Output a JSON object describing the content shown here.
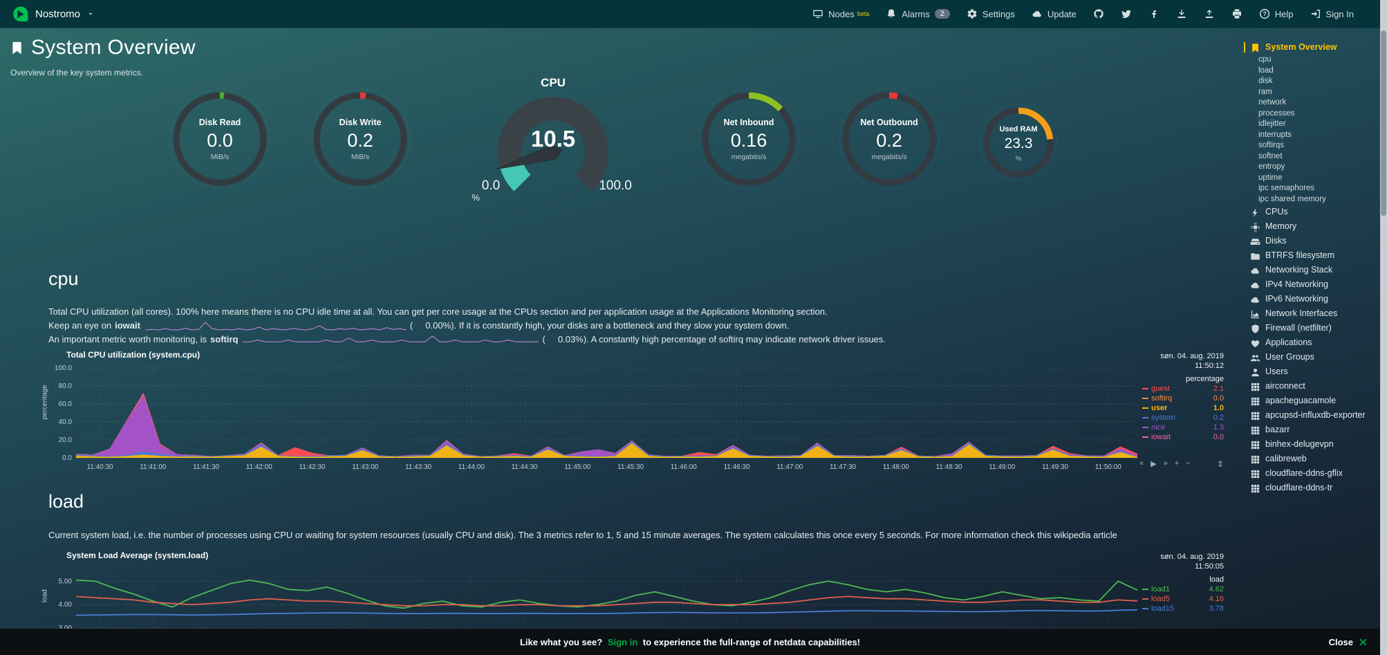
{
  "colors": {
    "accent": "#00ab44",
    "active_menu": "#ffc300"
  },
  "navbar": {
    "brand": "Nostromo",
    "items": [
      {
        "id": "nodes",
        "label": "Nodes",
        "sup": "beta",
        "icon": "monitor"
      },
      {
        "id": "alarms",
        "label": "Alarms",
        "badge": "2",
        "icon": "bell"
      },
      {
        "id": "settings",
        "label": "Settings",
        "icon": "gear"
      },
      {
        "id": "update",
        "label": "Update",
        "icon": "cloud"
      },
      {
        "id": "github",
        "icon": "github"
      },
      {
        "id": "twitter",
        "icon": "twitter"
      },
      {
        "id": "facebook",
        "icon": "facebook"
      },
      {
        "id": "import",
        "icon": "download"
      },
      {
        "id": "export",
        "icon": "upload"
      },
      {
        "id": "print",
        "icon": "printer"
      },
      {
        "id": "help",
        "label": "Help",
        "icon": "question"
      },
      {
        "id": "signin",
        "label": "Sign In",
        "icon": "signin"
      }
    ]
  },
  "header": {
    "title": "System Overview",
    "subtitle": "Overview of the key system metrics."
  },
  "gauges": [
    {
      "type": "easypie",
      "title": "Disk Read",
      "value": "0.0",
      "unit": "MiB/s",
      "percent": 1.5,
      "color": "#4caf2c"
    },
    {
      "type": "easypie",
      "title": "Disk Write",
      "value": "0.2",
      "unit": "MiB/s",
      "percent": 2,
      "color": "#e33935"
    },
    {
      "type": "gauge",
      "title": "CPU",
      "value": "10.5",
      "unit": "%",
      "min": "0.0",
      "max": "100.0",
      "percent": 10.5,
      "color": "#46c6b4"
    },
    {
      "type": "easypie",
      "title": "Net Inbound",
      "value": "0.16",
      "unit": "megabits/s",
      "percent": 13,
      "color": "#8fc021"
    },
    {
      "type": "easypie",
      "title": "Net Outbound",
      "value": "0.2",
      "unit": "megabits/s",
      "percent": 3,
      "color": "#e33935"
    },
    {
      "type": "easypie",
      "title": "Used RAM",
      "value": "23.3",
      "unit": "%",
      "percent": 23.3,
      "color": "#f3a018"
    }
  ],
  "cpu_section": {
    "heading": "cpu",
    "para1": "Total CPU utilization (all cores). 100% here means there is no CPU idle time at all. You can get per core usage at the CPUs section and per application usage at the Applications Monitoring section.",
    "line2_pre": "Keep an eye on",
    "line2_bold": "iowait",
    "line2_post": "(     0.00%). If it is constantly high, your disks are a bottleneck and they slow your system down.",
    "line3_pre": "An important metric worth monitoring, is",
    "line3_bold": "softirq",
    "line3_post": "(     0.03%). A constantly high percentage of softirq may indicate network driver issues.",
    "spark_color": "#cf8add",
    "spark_iowait": [
      0,
      1,
      0,
      2,
      0,
      0,
      3,
      0,
      1,
      13,
      2,
      0,
      1,
      0,
      2,
      0,
      1,
      5,
      0,
      2,
      1,
      0,
      3,
      1,
      0,
      2,
      7,
      1,
      0,
      2,
      1,
      3,
      0,
      1,
      2,
      0,
      4,
      1,
      2,
      0
    ],
    "spark_softirq": [
      1,
      1,
      2,
      1,
      1,
      1,
      2,
      1,
      1,
      1,
      1,
      2,
      1,
      1,
      3,
      1,
      1,
      2,
      1,
      1,
      1,
      2,
      1,
      1,
      1,
      4,
      1,
      1,
      2,
      1,
      1,
      1,
      2,
      1,
      1,
      2,
      1,
      1,
      1,
      1
    ],
    "chart": {
      "type": "stacked-area",
      "title": "Total CPU utilization (system.cpu)",
      "date": "søn. 04. aug. 2019",
      "time": "11:50:12",
      "unit": "percentage",
      "ylabel": "percentage",
      "ymin": 0,
      "ymax": 100,
      "y_ticks": [
        "100.0",
        "80.0",
        "60.0",
        "40.0",
        "20.0",
        "0.0"
      ],
      "y_tick_values": [
        100,
        80,
        60,
        40,
        20,
        0
      ],
      "x_ticks": [
        "11:40:30",
        "11:41:00",
        "11:41:30",
        "11:42:00",
        "11:42:30",
        "11:43:00",
        "11:43:30",
        "11:44:00",
        "11:44:30",
        "11:45:00",
        "11:45:30",
        "11:46:00",
        "11:46:30",
        "11:47:00",
        "11:47:30",
        "11:48:00",
        "11:48:30",
        "11:49:00",
        "11:49:30",
        "11:50:00"
      ],
      "legend": [
        {
          "name": "guest",
          "value": "2.1",
          "color": "#ff4a50"
        },
        {
          "name": "softirq",
          "value": "0.0",
          "color": "#ff8c42"
        },
        {
          "name": "user",
          "value": "1.0",
          "color": "#f9b50b",
          "bold": true
        },
        {
          "name": "system",
          "value": "0.2",
          "color": "#4e79d4"
        },
        {
          "name": "nice",
          "value": "1.3",
          "color": "#9f53cc"
        },
        {
          "name": "iowait",
          "value": "0.0",
          "color": "#ff5ea8"
        }
      ],
      "series": [
        {
          "name": "user",
          "color": "#f9b50b",
          "values": [
            2.5,
            1.8,
            1.2,
            2.0,
            3.5,
            2.2,
            1.5,
            1.8,
            1.2,
            2.0,
            2.8,
            12.5,
            2.2,
            1.5,
            1.2,
            1.8,
            2.2,
            8.5,
            1.8,
            1.2,
            1.6,
            2.2,
            14.0,
            3.0,
            1.2,
            1.6,
            2.0,
            1.4,
            9.5,
            2.2,
            1.6,
            1.2,
            2.0,
            16.5,
            2.2,
            1.2,
            1.6,
            1.4,
            2.0,
            10.5,
            2.2,
            1.6,
            1.2,
            2.0,
            13.5,
            2.2,
            1.4,
            1.6,
            2.2,
            8.5,
            1.6,
            1.2,
            2.0,
            15.0,
            2.2,
            1.6,
            1.4,
            2.0,
            9.0,
            2.2,
            1.6,
            1.2,
            6.5,
            1.0
          ]
        },
        {
          "name": "system",
          "color": "#4e79d4",
          "values": [
            1.2,
            0.9,
            0.7,
            1.1,
            3.8,
            2.0,
            1.0,
            0.8,
            0.6,
            0.9,
            1.1,
            2.2,
            0.8,
            0.6,
            0.8,
            1.0,
            0.9,
            1.6,
            0.8,
            0.6,
            1.0,
            0.9,
            2.1,
            1.0,
            0.6,
            0.8,
            1.0,
            0.8,
            1.5,
            0.8,
            1.0,
            0.7,
            0.8,
            2.1,
            1.0,
            0.8,
            0.6,
            1.0,
            0.8,
            1.5,
            1.0,
            0.6,
            0.8,
            1.0,
            2.0,
            0.8,
            1.0,
            0.6,
            0.8,
            1.5,
            0.8,
            0.6,
            1.0,
            2.0,
            1.0,
            0.8,
            0.6,
            1.0,
            1.5,
            0.8,
            1.0,
            0.6,
            1.0,
            0.2
          ]
        },
        {
          "name": "nice",
          "color": "#9f53cc",
          "values": [
            0.5,
            1.0,
            8.0,
            38.0,
            62.0,
            10.0,
            1.5,
            0.5,
            0,
            0,
            0.5,
            2.0,
            0,
            0,
            0.5,
            0,
            0,
            1.0,
            0,
            0,
            0.5,
            0,
            3.0,
            0.5,
            0,
            0,
            0.5,
            0,
            1.5,
            0,
            4.5,
            7.5,
            2.5,
            0,
            0.5,
            0,
            0,
            0.5,
            0,
            2.0,
            0,
            0,
            0.5,
            0,
            1.0,
            0,
            0.5,
            0,
            0,
            0.5,
            0,
            0,
            2.0,
            0.5,
            0,
            0,
            0.5,
            0,
            0,
            1.0,
            0,
            0.5,
            3.0,
            1.3
          ]
        },
        {
          "name": "guest",
          "color": "#ff4a50",
          "values": [
            0,
            0,
            0,
            0,
            1.5,
            1.0,
            0,
            0,
            0,
            0,
            0,
            0,
            0,
            9.5,
            3.0,
            0,
            0,
            0,
            0,
            0,
            0,
            0,
            0,
            0,
            0,
            0,
            1.5,
            0,
            0,
            0,
            0,
            0,
            0,
            0,
            0,
            0,
            0,
            3.5,
            1.0,
            0,
            0,
            0,
            0,
            0,
            0,
            0,
            0,
            0,
            0,
            1.5,
            0,
            0,
            0,
            0,
            0,
            0,
            0,
            0,
            2.5,
            1.0,
            0,
            0,
            2.0,
            2.1
          ]
        },
        {
          "name": "softirq",
          "color": "#ff8c42",
          "values": [
            0.2,
            0.1,
            0.1,
            0.2,
            0.5,
            0.2,
            0.1,
            0.1,
            0.1,
            0.1,
            0.2,
            0.3,
            0.1,
            0.1,
            0.1,
            0.1,
            0.1,
            0.2,
            0.1,
            0.1,
            0.1,
            0.1,
            0.3,
            0.1,
            0.1,
            0.1,
            0.1,
            0.1,
            0.2,
            0.1,
            0.1,
            0.1,
            0.1,
            0.3,
            0.1,
            0.1,
            0.1,
            0.1,
            0.1,
            0.2,
            0.1,
            0.1,
            0.1,
            0.1,
            0.3,
            0.1,
            0.1,
            0.1,
            0.1,
            0.2,
            0.1,
            0.1,
            0.1,
            0.3,
            0.1,
            0.1,
            0.1,
            0.1,
            0.2,
            0.1,
            0.1,
            0.1,
            0.1,
            0.0
          ]
        },
        {
          "name": "iowait",
          "color": "#ff5ea8",
          "values": [
            0,
            0,
            0.3,
            0.5,
            1.0,
            0.3,
            0,
            0,
            0,
            0,
            0,
            0.3,
            0,
            0,
            0,
            0,
            0,
            0.2,
            0,
            0,
            0,
            0,
            0.4,
            0,
            0,
            0,
            0,
            0,
            0.2,
            0,
            0,
            0,
            0,
            0.4,
            0,
            0,
            0,
            0,
            0,
            0.2,
            0,
            0,
            0,
            0,
            0.3,
            0,
            0,
            0,
            0,
            0.2,
            0,
            0,
            0,
            0.3,
            0,
            0,
            0,
            0,
            0.2,
            0,
            0,
            0,
            0.1,
            0.0
          ]
        }
      ]
    }
  },
  "load_section": {
    "heading": "load",
    "para": "Current system load, i.e. the number of processes using CPU or waiting for system resources (usually CPU and disk). The 3 metrics refer to 1, 5 and 15 minute averages. The system calculates this once every 5 seconds. For more information check this wikipedia article",
    "chart": {
      "type": "line",
      "title": "System Load Average (system.load)",
      "date": "søn. 04. aug. 2019",
      "time": "11:50:05",
      "unit": "load",
      "ylabel": "load",
      "ymin": 2.0,
      "ymax": 5.6,
      "y_ticks": [
        "5.00",
        "4.00",
        "3.00"
      ],
      "y_tick_values": [
        5,
        4,
        3
      ],
      "legend": [
        {
          "name": "load1",
          "value": "4.62",
          "color": "#4fb853"
        },
        {
          "name": "load5",
          "value": "4.16",
          "color": "#e0604d"
        },
        {
          "name": "load15",
          "value": "3.78",
          "color": "#4a7dd8"
        }
      ],
      "series": [
        {
          "name": "load1",
          "color": "#4fb853",
          "values": [
            5.05,
            5.0,
            4.7,
            4.45,
            4.15,
            3.9,
            4.3,
            4.6,
            4.9,
            5.05,
            4.9,
            4.65,
            4.6,
            4.75,
            4.5,
            4.2,
            3.95,
            3.85,
            4.05,
            4.15,
            3.95,
            3.9,
            4.1,
            4.2,
            4.05,
            3.95,
            3.9,
            4.0,
            4.15,
            4.4,
            4.55,
            4.35,
            4.15,
            4.0,
            3.95,
            4.1,
            4.3,
            4.6,
            4.85,
            5.0,
            4.85,
            4.65,
            4.55,
            4.65,
            4.5,
            4.3,
            4.2,
            4.35,
            4.55,
            4.4,
            4.25,
            4.3,
            4.2,
            4.15,
            5.0,
            4.62
          ]
        },
        {
          "name": "load5",
          "color": "#e0604d",
          "values": [
            4.35,
            4.3,
            4.25,
            4.2,
            4.1,
            4.05,
            4.0,
            4.05,
            4.1,
            4.2,
            4.25,
            4.2,
            4.15,
            4.15,
            4.1,
            4.05,
            4.0,
            3.95,
            3.95,
            4.0,
            4.0,
            3.95,
            3.95,
            4.0,
            4.0,
            3.95,
            3.95,
            3.95,
            4.0,
            4.05,
            4.1,
            4.1,
            4.05,
            4.0,
            4.0,
            4.0,
            4.05,
            4.1,
            4.2,
            4.3,
            4.35,
            4.3,
            4.25,
            4.25,
            4.2,
            4.15,
            4.1,
            4.1,
            4.15,
            4.2,
            4.2,
            4.15,
            4.1,
            4.1,
            4.2,
            4.16
          ]
        },
        {
          "name": "load15",
          "color": "#4a7dd8",
          "values": [
            3.55,
            3.56,
            3.57,
            3.58,
            3.58,
            3.57,
            3.56,
            3.57,
            3.58,
            3.6,
            3.62,
            3.63,
            3.64,
            3.65,
            3.65,
            3.64,
            3.63,
            3.62,
            3.62,
            3.63,
            3.63,
            3.62,
            3.62,
            3.63,
            3.63,
            3.62,
            3.62,
            3.62,
            3.63,
            3.65,
            3.66,
            3.67,
            3.66,
            3.65,
            3.65,
            3.65,
            3.66,
            3.68,
            3.7,
            3.72,
            3.74,
            3.74,
            3.73,
            3.73,
            3.72,
            3.71,
            3.7,
            3.7,
            3.72,
            3.74,
            3.75,
            3.74,
            3.73,
            3.73,
            3.76,
            3.78
          ]
        }
      ]
    }
  },
  "toolbox": [
    "rewind",
    "play",
    "forward",
    "zoom-in",
    "zoom-out",
    "resize"
  ],
  "sidebar": {
    "sections": [
      {
        "label": "System Overview",
        "icon": "bookmark",
        "active": true,
        "children": [
          "cpu",
          "load",
          "disk",
          "ram",
          "network",
          "processes",
          "idlejitter",
          "interrupts",
          "softirqs",
          "softnet",
          "entropy",
          "uptime",
          "ipc semaphores",
          "ipc shared memory"
        ]
      },
      {
        "label": "CPUs",
        "icon": "bolt"
      },
      {
        "label": "Memory",
        "icon": "microchip"
      },
      {
        "label": "Disks",
        "icon": "hdd"
      },
      {
        "label": "BTRFS filesystem",
        "icon": "folder"
      },
      {
        "label": "Networking Stack",
        "icon": "cloud"
      },
      {
        "label": "IPv4 Networking",
        "icon": "cloud"
      },
      {
        "label": "IPv6 Networking",
        "icon": "cloud"
      },
      {
        "label": "Network Interfaces",
        "icon": "chart"
      },
      {
        "label": "Firewall (netfilter)",
        "icon": "shield"
      },
      {
        "label": "Applications",
        "icon": "heart"
      },
      {
        "label": "User Groups",
        "icon": "users"
      },
      {
        "label": "Users",
        "icon": "user"
      },
      {
        "label": "airconnect",
        "icon": "grid"
      },
      {
        "label": "apacheguacamole",
        "icon": "grid"
      },
      {
        "label": "apcupsd-influxdb-exporter",
        "icon": "grid"
      },
      {
        "label": "bazarr",
        "icon": "grid"
      },
      {
        "label": "binhex-delugevpn",
        "icon": "grid"
      },
      {
        "label": "calibreweb",
        "icon": "grid"
      },
      {
        "label": "cloudflare-ddns-gflix",
        "icon": "grid"
      },
      {
        "label": "cloudflare-ddns-tr",
        "icon": "grid"
      }
    ]
  },
  "footer": {
    "message_pre": "Like what you see?",
    "signin": "Sign in",
    "message_post": "to experience the full-range of netdata capabilities!",
    "close": "Close"
  }
}
